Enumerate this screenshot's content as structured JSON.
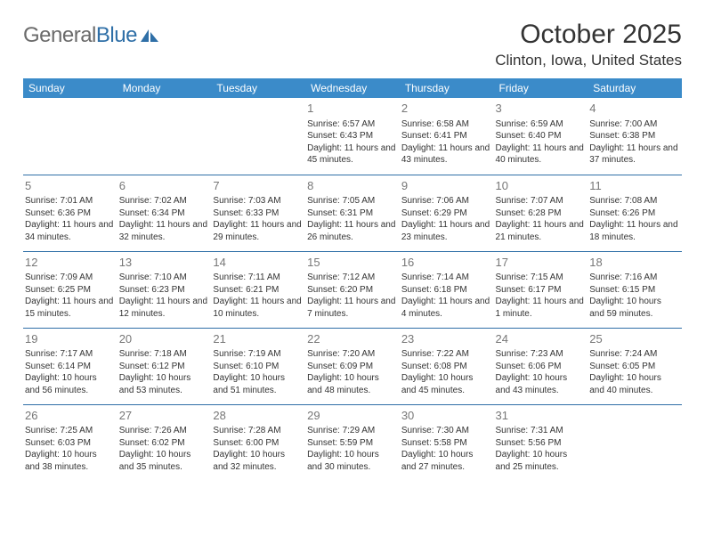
{
  "brand": {
    "word1": "General",
    "word2": "Blue",
    "icon_color": "#2f6fa7"
  },
  "header": {
    "month_title": "October 2025",
    "location": "Clinton, Iowa, United States"
  },
  "colors": {
    "header_bg": "#3b8bc9",
    "header_text": "#ffffff",
    "row_border": "#2f6fa7",
    "daynum": "#777777",
    "body_text": "#333333",
    "logo_gray": "#6b6b6b"
  },
  "weekdays": [
    "Sunday",
    "Monday",
    "Tuesday",
    "Wednesday",
    "Thursday",
    "Friday",
    "Saturday"
  ],
  "first_weekday_index": 3,
  "days": [
    {
      "n": 1,
      "sunrise": "6:57 AM",
      "sunset": "6:43 PM",
      "daylight": "11 hours and 45 minutes."
    },
    {
      "n": 2,
      "sunrise": "6:58 AM",
      "sunset": "6:41 PM",
      "daylight": "11 hours and 43 minutes."
    },
    {
      "n": 3,
      "sunrise": "6:59 AM",
      "sunset": "6:40 PM",
      "daylight": "11 hours and 40 minutes."
    },
    {
      "n": 4,
      "sunrise": "7:00 AM",
      "sunset": "6:38 PM",
      "daylight": "11 hours and 37 minutes."
    },
    {
      "n": 5,
      "sunrise": "7:01 AM",
      "sunset": "6:36 PM",
      "daylight": "11 hours and 34 minutes."
    },
    {
      "n": 6,
      "sunrise": "7:02 AM",
      "sunset": "6:34 PM",
      "daylight": "11 hours and 32 minutes."
    },
    {
      "n": 7,
      "sunrise": "7:03 AM",
      "sunset": "6:33 PM",
      "daylight": "11 hours and 29 minutes."
    },
    {
      "n": 8,
      "sunrise": "7:05 AM",
      "sunset": "6:31 PM",
      "daylight": "11 hours and 26 minutes."
    },
    {
      "n": 9,
      "sunrise": "7:06 AM",
      "sunset": "6:29 PM",
      "daylight": "11 hours and 23 minutes."
    },
    {
      "n": 10,
      "sunrise": "7:07 AM",
      "sunset": "6:28 PM",
      "daylight": "11 hours and 21 minutes."
    },
    {
      "n": 11,
      "sunrise": "7:08 AM",
      "sunset": "6:26 PM",
      "daylight": "11 hours and 18 minutes."
    },
    {
      "n": 12,
      "sunrise": "7:09 AM",
      "sunset": "6:25 PM",
      "daylight": "11 hours and 15 minutes."
    },
    {
      "n": 13,
      "sunrise": "7:10 AM",
      "sunset": "6:23 PM",
      "daylight": "11 hours and 12 minutes."
    },
    {
      "n": 14,
      "sunrise": "7:11 AM",
      "sunset": "6:21 PM",
      "daylight": "11 hours and 10 minutes."
    },
    {
      "n": 15,
      "sunrise": "7:12 AM",
      "sunset": "6:20 PM",
      "daylight": "11 hours and 7 minutes."
    },
    {
      "n": 16,
      "sunrise": "7:14 AM",
      "sunset": "6:18 PM",
      "daylight": "11 hours and 4 minutes."
    },
    {
      "n": 17,
      "sunrise": "7:15 AM",
      "sunset": "6:17 PM",
      "daylight": "11 hours and 1 minute."
    },
    {
      "n": 18,
      "sunrise": "7:16 AM",
      "sunset": "6:15 PM",
      "daylight": "10 hours and 59 minutes."
    },
    {
      "n": 19,
      "sunrise": "7:17 AM",
      "sunset": "6:14 PM",
      "daylight": "10 hours and 56 minutes."
    },
    {
      "n": 20,
      "sunrise": "7:18 AM",
      "sunset": "6:12 PM",
      "daylight": "10 hours and 53 minutes."
    },
    {
      "n": 21,
      "sunrise": "7:19 AM",
      "sunset": "6:10 PM",
      "daylight": "10 hours and 51 minutes."
    },
    {
      "n": 22,
      "sunrise": "7:20 AM",
      "sunset": "6:09 PM",
      "daylight": "10 hours and 48 minutes."
    },
    {
      "n": 23,
      "sunrise": "7:22 AM",
      "sunset": "6:08 PM",
      "daylight": "10 hours and 45 minutes."
    },
    {
      "n": 24,
      "sunrise": "7:23 AM",
      "sunset": "6:06 PM",
      "daylight": "10 hours and 43 minutes."
    },
    {
      "n": 25,
      "sunrise": "7:24 AM",
      "sunset": "6:05 PM",
      "daylight": "10 hours and 40 minutes."
    },
    {
      "n": 26,
      "sunrise": "7:25 AM",
      "sunset": "6:03 PM",
      "daylight": "10 hours and 38 minutes."
    },
    {
      "n": 27,
      "sunrise": "7:26 AM",
      "sunset": "6:02 PM",
      "daylight": "10 hours and 35 minutes."
    },
    {
      "n": 28,
      "sunrise": "7:28 AM",
      "sunset": "6:00 PM",
      "daylight": "10 hours and 32 minutes."
    },
    {
      "n": 29,
      "sunrise": "7:29 AM",
      "sunset": "5:59 PM",
      "daylight": "10 hours and 30 minutes."
    },
    {
      "n": 30,
      "sunrise": "7:30 AM",
      "sunset": "5:58 PM",
      "daylight": "10 hours and 27 minutes."
    },
    {
      "n": 31,
      "sunrise": "7:31 AM",
      "sunset": "5:56 PM",
      "daylight": "10 hours and 25 minutes."
    }
  ],
  "labels": {
    "sunrise": "Sunrise:",
    "sunset": "Sunset:",
    "daylight": "Daylight:"
  }
}
